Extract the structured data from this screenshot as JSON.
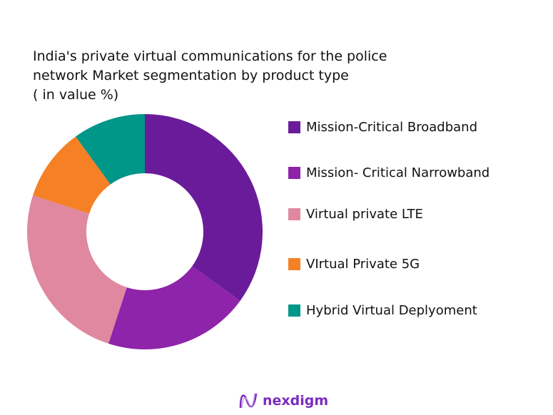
{
  "chart_data": {
    "type": "donut",
    "title_lines": [
      "India's private virtual communications for the police",
      "network Market segmentation by product type",
      "( in value %)"
    ],
    "categories": [
      "Mission-Critical Broadband",
      "Mission- Critical Narrowband",
      "Virtual private LTE",
      "VIrtual Private 5G",
      "Hybrid Virtual Deplyoment"
    ],
    "values": [
      35,
      20,
      25,
      10,
      10
    ],
    "colors": [
      "#6a1b9a",
      "#8e24aa",
      "#e088a0",
      "#f58025",
      "#009688"
    ],
    "legend_position": "right"
  },
  "logo": {
    "text": "nexdigm"
  }
}
